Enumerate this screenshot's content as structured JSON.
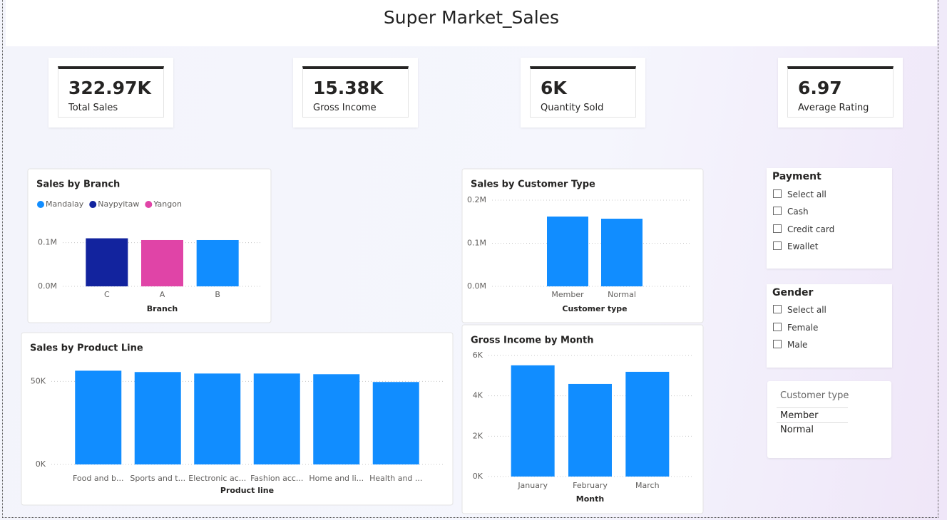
{
  "header": {
    "title": "Super Market_Sales"
  },
  "kpis": [
    {
      "value": "322.97K",
      "label": "Total Sales"
    },
    {
      "value": "15.38K",
      "label": "Gross Income"
    },
    {
      "value": "6K",
      "label": "Quantity Sold"
    },
    {
      "value": "6.97",
      "label": "Average Rating"
    }
  ],
  "chart_data": [
    {
      "type": "bar",
      "title": "Sales by Branch",
      "x_label": "Branch",
      "categories": [
        "C",
        "A",
        "B"
      ],
      "series": [
        {
          "name": "Mandalay",
          "color": "#118dff",
          "values": [
            null,
            null,
            106000
          ]
        },
        {
          "name": "Naypyitaw",
          "color": "#12239e",
          "values": [
            110000,
            null,
            null
          ]
        },
        {
          "name": "Yangon",
          "color": "#e044a7",
          "values": [
            null,
            106000,
            null
          ]
        }
      ],
      "ylim": [
        0,
        150000
      ],
      "yticks": [
        {
          "value": 0,
          "label": "0.0M"
        },
        {
          "value": 100000,
          "label": "0.1M"
        }
      ],
      "grid": true,
      "legend": "top-left"
    },
    {
      "type": "bar",
      "title": "Sales by Customer Type",
      "x_label": "Customer type",
      "categories": [
        "Member",
        "Normal"
      ],
      "values": [
        162000,
        157000
      ],
      "color": "#118dff",
      "ylim": [
        0,
        200000
      ],
      "yticks": [
        {
          "value": 0,
          "label": "0.0M"
        },
        {
          "value": 100000,
          "label": "0.1M"
        },
        {
          "value": 200000,
          "label": "0.2M"
        }
      ],
      "grid": true
    },
    {
      "type": "bar",
      "title": "Sales by Product Line",
      "x_label": "Product line",
      "categories": [
        "Food and b...",
        "Sports and t...",
        "Electronic ac...",
        "Fashion acc...",
        "Home and li...",
        "Health and ..."
      ],
      "values": [
        56400,
        55600,
        54700,
        54700,
        54300,
        49600
      ],
      "color": "#118dff",
      "ylim": [
        0,
        60000
      ],
      "yticks": [
        {
          "value": 0,
          "label": "0K"
        },
        {
          "value": 50000,
          "label": "50K"
        }
      ],
      "grid": true
    },
    {
      "type": "bar",
      "title": "Gross Income by Month",
      "x_label": "Month",
      "categories": [
        "January",
        "February",
        "March"
      ],
      "values": [
        5510,
        4590,
        5190
      ],
      "color": "#118dff",
      "ylim": [
        0,
        6000
      ],
      "yticks": [
        {
          "value": 0,
          "label": "0K"
        },
        {
          "value": 2000,
          "label": "2K"
        },
        {
          "value": 4000,
          "label": "4K"
        },
        {
          "value": 6000,
          "label": "6K"
        }
      ],
      "grid": true
    }
  ],
  "slicers": [
    {
      "title": "Payment",
      "options": [
        "Select all",
        "Cash",
        "Credit card",
        "Ewallet"
      ]
    },
    {
      "title": "Gender",
      "options": [
        "Select all",
        "Female",
        "Male"
      ]
    },
    {
      "title": "Customer type",
      "options": [
        "Member",
        "Normal"
      ]
    }
  ]
}
